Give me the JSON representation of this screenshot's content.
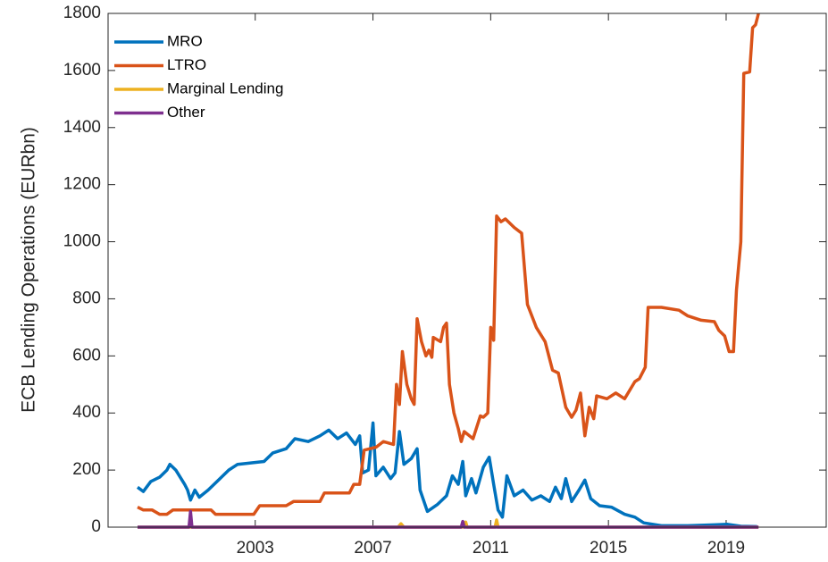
{
  "chart_data": {
    "type": "line",
    "y_label": "ECB Lending Operations (EURbn)",
    "xlim": [
      1998,
      2022.4
    ],
    "xticks": [
      2003,
      2007,
      2011,
      2015,
      2019
    ],
    "ylim": [
      0,
      1800
    ],
    "yticks": [
      0,
      200,
      400,
      600,
      800,
      1000,
      1200,
      1400,
      1600,
      1800
    ],
    "legend": "upper-left",
    "grid": false,
    "box": true,
    "series": [
      {
        "name": "MRO",
        "color": "#0072BD",
        "x": [
          1999.0,
          1999.2,
          1999.45,
          1999.75,
          2000.0,
          2000.1,
          2000.3,
          2000.6,
          2000.7,
          2000.8,
          2000.95,
          2001.1,
          2001.4,
          2001.8,
          2002.1,
          2002.4,
          2002.85,
          2003.3,
          2003.6,
          2004.05,
          2004.35,
          2004.8,
          2005.2,
          2005.5,
          2005.8,
          2006.1,
          2006.4,
          2006.55,
          2006.65,
          2006.85,
          2007.0,
          2007.1,
          2007.35,
          2007.6,
          2007.75,
          2007.9,
          2008.05,
          2008.3,
          2008.5,
          2008.6,
          2008.85,
          2009.2,
          2009.5,
          2009.7,
          2009.9,
          2010.05,
          2010.15,
          2010.35,
          2010.5,
          2010.75,
          2010.95,
          2011.1,
          2011.25,
          2011.4,
          2011.55,
          2011.8,
          2012.1,
          2012.4,
          2012.7,
          2013.0,
          2013.2,
          2013.4,
          2013.55,
          2013.75,
          2014.0,
          2014.2,
          2014.4,
          2014.7,
          2015.1,
          2015.55,
          2015.9,
          2016.2,
          2016.8,
          2017.7,
          2018.6,
          2019.05,
          2019.5,
          2020.05
        ],
        "values": [
          140,
          125,
          160,
          175,
          200,
          220,
          200,
          150,
          130,
          95,
          130,
          105,
          130,
          170,
          200,
          220,
          225,
          230,
          260,
          275,
          310,
          300,
          320,
          340,
          310,
          330,
          290,
          320,
          190,
          200,
          365,
          180,
          210,
          170,
          190,
          335,
          220,
          240,
          275,
          130,
          55,
          80,
          110,
          180,
          150,
          230,
          110,
          170,
          120,
          210,
          245,
          150,
          60,
          35,
          180,
          110,
          130,
          95,
          110,
          90,
          140,
          100,
          170,
          90,
          130,
          165,
          100,
          75,
          70,
          45,
          35,
          15,
          5,
          5,
          8,
          10,
          3,
          2
        ]
      },
      {
        "name": "LTRO",
        "color": "#D95319",
        "x": [
          1999.0,
          1999.2,
          1999.5,
          1999.75,
          2000.0,
          2000.2,
          2001.5,
          2001.65,
          2002.95,
          2003.15,
          2004.05,
          2004.3,
          2005.2,
          2005.35,
          2006.2,
          2006.35,
          2006.55,
          2006.7,
          2007.1,
          2007.35,
          2007.7,
          2007.8,
          2007.9,
          2008.0,
          2008.15,
          2008.3,
          2008.4,
          2008.5,
          2008.65,
          2008.8,
          2008.9,
          2009.0,
          2009.05,
          2009.3,
          2009.4,
          2009.5,
          2009.6,
          2009.75,
          2009.9,
          2010.0,
          2010.1,
          2010.4,
          2010.65,
          2010.75,
          2010.9,
          2011.0,
          2011.1,
          2011.2,
          2011.35,
          2011.5,
          2011.8,
          2012.05,
          2012.25,
          2012.55,
          2012.85,
          2013.1,
          2013.3,
          2013.55,
          2013.75,
          2013.9,
          2014.05,
          2014.2,
          2014.35,
          2014.5,
          2014.6,
          2014.95,
          2015.25,
          2015.55,
          2015.9,
          2016.05,
          2016.25,
          2016.35,
          2016.8,
          2017.4,
          2017.7,
          2018.15,
          2018.6,
          2018.75,
          2018.95,
          2019.1,
          2019.25,
          2019.35,
          2019.5,
          2019.6,
          2019.8,
          2019.9,
          2020.0,
          2020.1
        ],
        "values": [
          70,
          60,
          60,
          45,
          45,
          60,
          60,
          45,
          45,
          75,
          75,
          90,
          90,
          120,
          120,
          150,
          150,
          270,
          280,
          300,
          290,
          500,
          430,
          615,
          500,
          450,
          430,
          730,
          650,
          600,
          620,
          595,
          665,
          650,
          700,
          715,
          500,
          400,
          345,
          300,
          335,
          310,
          390,
          385,
          400,
          700,
          655,
          1090,
          1070,
          1080,
          1050,
          1030,
          780,
          700,
          650,
          550,
          540,
          420,
          385,
          410,
          470,
          320,
          420,
          380,
          460,
          450,
          470,
          450,
          510,
          520,
          560,
          770,
          770,
          760,
          740,
          725,
          720,
          690,
          670,
          615,
          615,
          830,
          1000,
          1590,
          1595,
          1750,
          1760,
          1800
        ]
      },
      {
        "name": "Marginal Lending",
        "color": "#EDB120",
        "x": [
          1999.0,
          2007.85,
          2007.95,
          2008.05,
          2010.1,
          2010.15,
          2010.2,
          2011.15,
          2011.2,
          2011.25,
          2020.1
        ],
        "values": [
          0,
          0,
          12,
          0,
          0,
          18,
          0,
          0,
          25,
          0,
          0
        ]
      },
      {
        "name": "Other",
        "color": "#7E2F8E",
        "x": [
          1999.0,
          2000.75,
          2000.8,
          2000.85,
          2010.0,
          2010.05,
          2010.1,
          2020.1
        ],
        "values": [
          0,
          0,
          55,
          0,
          0,
          20,
          0,
          0
        ]
      }
    ]
  }
}
